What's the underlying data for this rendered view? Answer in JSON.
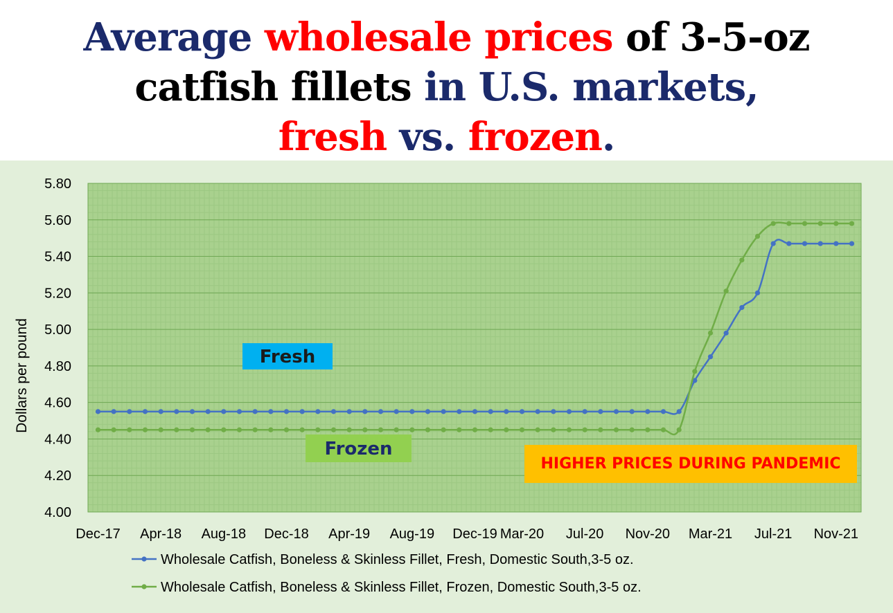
{
  "title": {
    "parts": [
      {
        "text": "Average ",
        "color": "#1b2a6b"
      },
      {
        "text": "wholesale prices",
        "color": "#ff0000"
      },
      {
        "text": " of 3-5-oz",
        "color": "#000000"
      },
      {
        "text": "catfish fillets",
        "color": "#000000"
      },
      {
        "text": " in U.S. markets,",
        "color": "#1b2a6b"
      },
      {
        "text": "fresh",
        "color": "#ff0000"
      },
      {
        "text": " vs. ",
        "color": "#1b2a6b"
      },
      {
        "text": "frozen",
        "color": "#ff0000"
      },
      {
        "text": ".",
        "color": "#1b2a6b"
      }
    ]
  },
  "annotations": {
    "fresh": "Fresh",
    "frozen": "Frozen",
    "pandemic": "HIGHER PRICES DURING PANDEMIC"
  },
  "colors": {
    "background": "#e2efda",
    "plot_background": "#a9d18e",
    "fresh_line": "#4472c4",
    "frozen_line": "#70ad47",
    "fresh_label_bg": "#00b0f0",
    "frozen_label_bg": "#92d050",
    "pandemic_label_bg": "#ffc000",
    "pandemic_label_text": "#ff0000"
  },
  "chart_data": {
    "type": "line",
    "title": "",
    "xlabel": "",
    "ylabel": "Dollars per pound",
    "ylim": [
      4.0,
      5.8
    ],
    "yticks": [
      "4.00",
      "4.20",
      "4.40",
      "4.60",
      "4.80",
      "5.00",
      "5.20",
      "5.40",
      "5.60",
      "5.80"
    ],
    "grid": true,
    "legend_position": "bottom",
    "x_start": "Dec-17",
    "x_tick_labels": [
      "Dec-17",
      "Apr-18",
      "Aug-18",
      "Dec-18",
      "Apr-19",
      "Aug-19",
      "Dec-19",
      "Mar-20",
      "Jul-20",
      "Nov-20",
      "Mar-21",
      "Jul-21",
      "Nov-21"
    ],
    "x_tick_months": [
      "2017-12",
      "2018-04",
      "2018-08",
      "2018-12",
      "2019-04",
      "2019-08",
      "2019-12",
      "2020-03",
      "2020-07",
      "2020-11",
      "2021-03",
      "2021-07",
      "2021-11"
    ],
    "months": [
      "2017-12",
      "2018-01",
      "2018-02",
      "2018-03",
      "2018-04",
      "2018-05",
      "2018-06",
      "2018-07",
      "2018-08",
      "2018-09",
      "2018-10",
      "2018-11",
      "2018-12",
      "2019-01",
      "2019-02",
      "2019-03",
      "2019-04",
      "2019-05",
      "2019-06",
      "2019-07",
      "2019-08",
      "2019-09",
      "2019-10",
      "2019-11",
      "2019-12",
      "2020-01",
      "2020-02",
      "2020-03",
      "2020-04",
      "2020-05",
      "2020-06",
      "2020-07",
      "2020-08",
      "2020-09",
      "2020-10",
      "2020-11",
      "2020-12",
      "2021-01",
      "2021-02",
      "2021-03",
      "2021-04",
      "2021-05",
      "2021-06",
      "2021-07",
      "2021-08",
      "2021-09",
      "2021-10",
      "2021-11",
      "2021-12"
    ],
    "series": [
      {
        "name": "Wholesale Catfish, Boneless & Skinless Fillet, Fresh, Domestic South,3-5 oz.",
        "color": "#4472c4",
        "values": [
          4.55,
          4.55,
          4.55,
          4.55,
          4.55,
          4.55,
          4.55,
          4.55,
          4.55,
          4.55,
          4.55,
          4.55,
          4.55,
          4.55,
          4.55,
          4.55,
          4.55,
          4.55,
          4.55,
          4.55,
          4.55,
          4.55,
          4.55,
          4.55,
          4.55,
          4.55,
          4.55,
          4.55,
          4.55,
          4.55,
          4.55,
          4.55,
          4.55,
          4.55,
          4.55,
          4.55,
          4.55,
          4.55,
          4.72,
          4.85,
          4.98,
          5.12,
          5.2,
          5.47,
          5.47,
          5.47,
          5.47,
          5.47,
          5.47
        ]
      },
      {
        "name": "Wholesale Catfish, Boneless & Skinless Fillet, Frozen, Domestic South,3-5 oz.",
        "color": "#70ad47",
        "values": [
          4.45,
          4.45,
          4.45,
          4.45,
          4.45,
          4.45,
          4.45,
          4.45,
          4.45,
          4.45,
          4.45,
          4.45,
          4.45,
          4.45,
          4.45,
          4.45,
          4.45,
          4.45,
          4.45,
          4.45,
          4.45,
          4.45,
          4.45,
          4.45,
          4.45,
          4.45,
          4.45,
          4.45,
          4.45,
          4.45,
          4.45,
          4.45,
          4.45,
          4.45,
          4.45,
          4.45,
          4.45,
          4.45,
          4.77,
          4.98,
          5.21,
          5.38,
          5.51,
          5.58,
          5.58,
          5.58,
          5.58,
          5.58,
          5.58
        ]
      }
    ]
  }
}
